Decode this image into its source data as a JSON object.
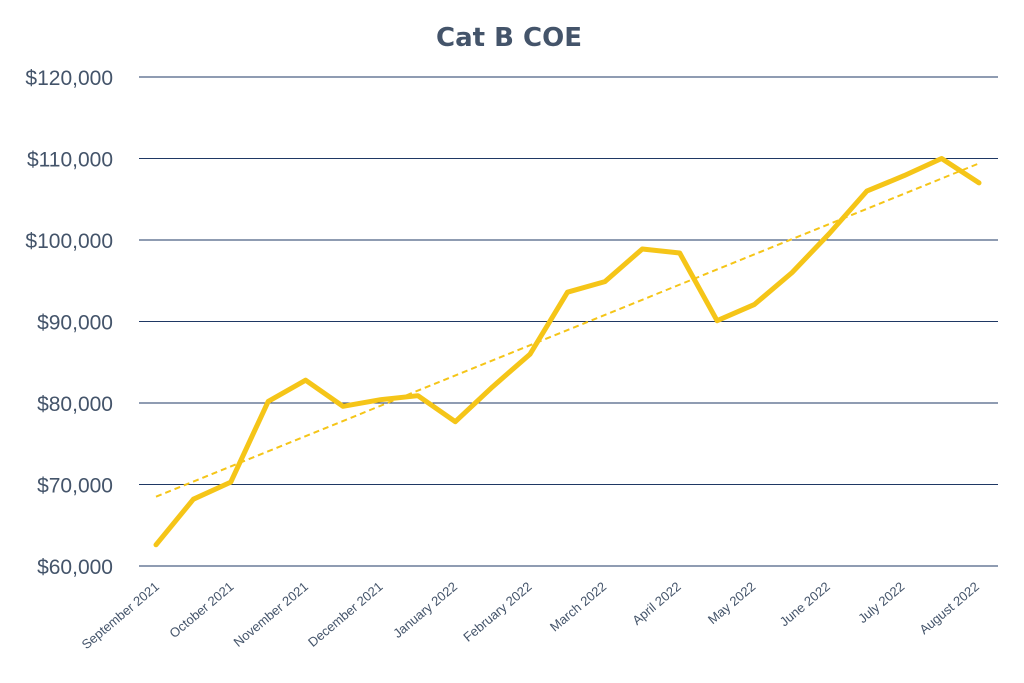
{
  "chart_data": {
    "type": "line",
    "title": "Cat B COE",
    "xlabel": "",
    "ylabel": "",
    "ylim": [
      60000,
      120000
    ],
    "y_ticks": [
      60000,
      70000,
      80000,
      90000,
      100000,
      110000,
      120000
    ],
    "y_tick_labels": [
      "$60,000",
      "$70,000",
      "$80,000",
      "$90,000",
      "$100,000",
      "$110,000",
      "$120,000"
    ],
    "x_tick_labels": [
      "September 2021",
      "October 2021",
      "November 2021",
      "December 2021",
      "January 2022",
      "February 2022",
      "March 2022",
      "April 2022",
      "May 2022",
      "June 2022",
      "July 2022",
      "August 2022"
    ],
    "grid": true,
    "legend": "none",
    "series": [
      {
        "name": "Cat B COE",
        "color": "#f5c518",
        "values": [
          62600,
          68200,
          70300,
          80200,
          82800,
          79600,
          80400,
          80900,
          77700,
          82000,
          86000,
          93600,
          94900,
          98900,
          98400,
          90100,
          92100,
          96000,
          100800,
          106000,
          107900,
          110000,
          107000
        ]
      },
      {
        "name": "Linear trendline",
        "color": "#f5c518",
        "style": "dashed",
        "start": 68500,
        "end": 109400
      }
    ]
  }
}
